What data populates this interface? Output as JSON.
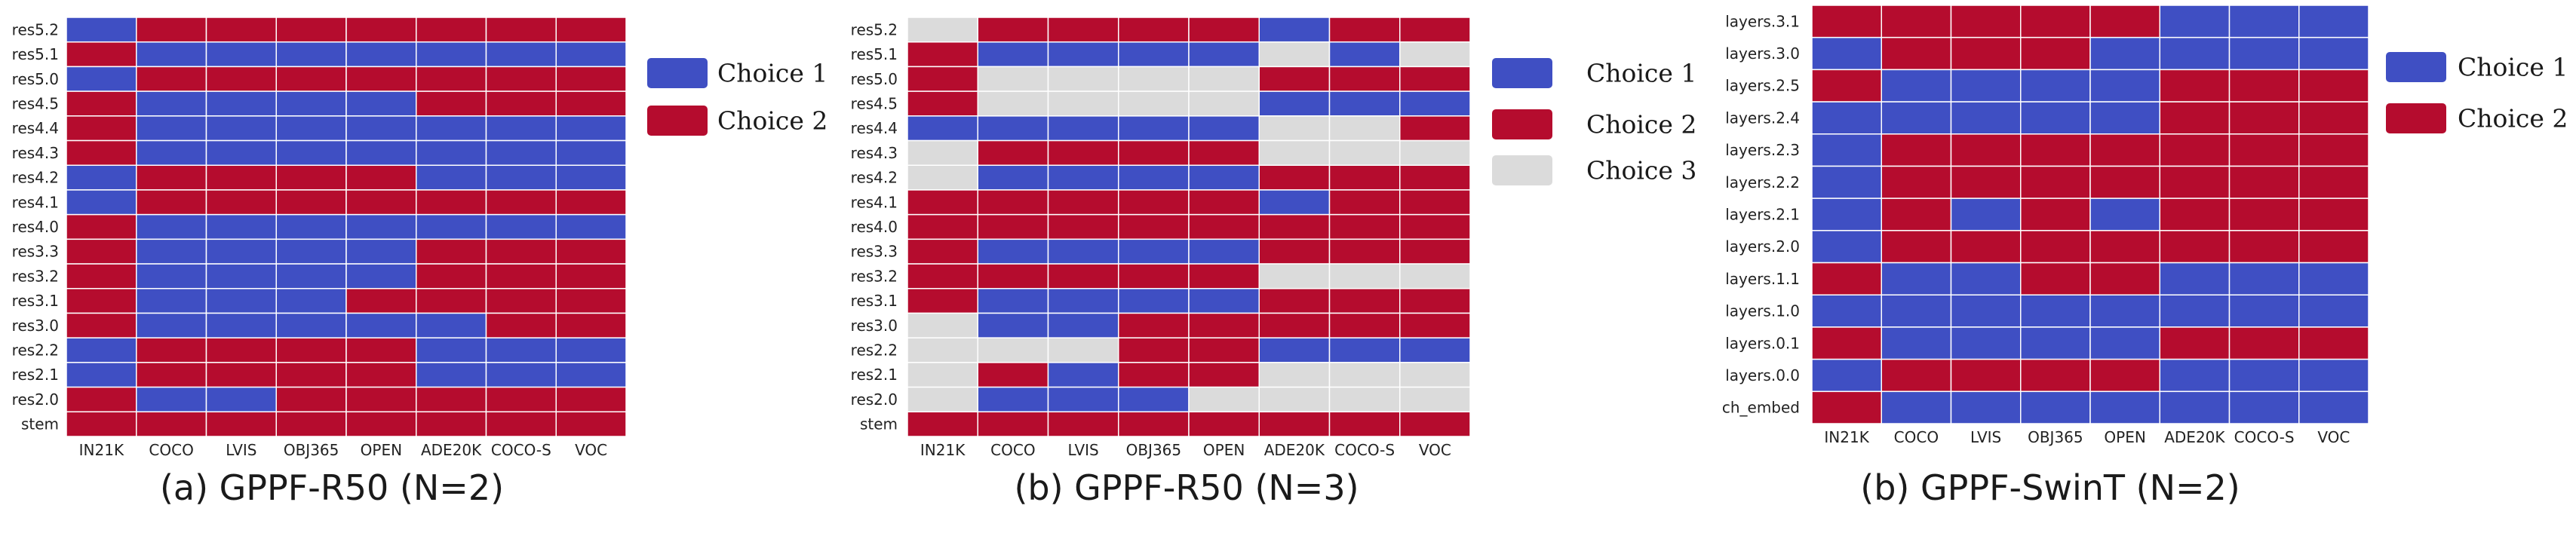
{
  "colors": {
    "choice1": "#3F4FC3",
    "choice2": "#B50C2E",
    "choice3": "#DBDBDB",
    "gridline": "#ffffff"
  },
  "chart_data": [
    {
      "type": "heatmap",
      "caption": "(a) GPPF-R50 (N=2)",
      "columns": [
        "IN21K",
        "COCO",
        "LVIS",
        "OBJ365",
        "OPEN",
        "ADE20K",
        "COCO-S",
        "VOC"
      ],
      "rows": [
        "res5.2",
        "res5.1",
        "res5.0",
        "res4.5",
        "res4.4",
        "res4.3",
        "res4.2",
        "res4.1",
        "res4.0",
        "res3.3",
        "res3.2",
        "res3.1",
        "res3.0",
        "res2.2",
        "res2.1",
        "res2.0",
        "stem"
      ],
      "legend": [
        {
          "value": 1,
          "label": "Choice 1"
        },
        {
          "value": 2,
          "label": "Choice 2"
        }
      ],
      "values": [
        [
          1,
          2,
          2,
          2,
          2,
          2,
          2,
          2
        ],
        [
          2,
          1,
          1,
          1,
          1,
          1,
          1,
          1
        ],
        [
          1,
          2,
          2,
          2,
          2,
          2,
          2,
          2
        ],
        [
          2,
          1,
          1,
          1,
          1,
          2,
          2,
          2
        ],
        [
          2,
          1,
          1,
          1,
          1,
          1,
          1,
          1
        ],
        [
          2,
          1,
          1,
          1,
          1,
          1,
          1,
          1
        ],
        [
          1,
          2,
          2,
          2,
          2,
          1,
          1,
          1
        ],
        [
          1,
          2,
          2,
          2,
          2,
          2,
          2,
          2
        ],
        [
          2,
          1,
          1,
          1,
          1,
          1,
          1,
          1
        ],
        [
          2,
          1,
          1,
          1,
          1,
          2,
          2,
          2
        ],
        [
          2,
          1,
          1,
          1,
          1,
          2,
          2,
          2
        ],
        [
          2,
          1,
          1,
          1,
          2,
          2,
          2,
          2
        ],
        [
          2,
          1,
          1,
          1,
          1,
          1,
          2,
          2
        ],
        [
          1,
          2,
          2,
          2,
          2,
          1,
          1,
          1
        ],
        [
          1,
          2,
          2,
          2,
          2,
          1,
          1,
          1
        ],
        [
          2,
          1,
          1,
          2,
          2,
          2,
          2,
          2
        ],
        [
          2,
          2,
          2,
          2,
          2,
          2,
          2,
          2
        ]
      ]
    },
    {
      "type": "heatmap",
      "caption": "(b) GPPF-R50 (N=3)",
      "columns": [
        "IN21K",
        "COCO",
        "LVIS",
        "OBJ365",
        "OPEN",
        "ADE20K",
        "COCO-S",
        "VOC"
      ],
      "rows": [
        "res5.2",
        "res5.1",
        "res5.0",
        "res4.5",
        "res4.4",
        "res4.3",
        "res4.2",
        "res4.1",
        "res4.0",
        "res3.3",
        "res3.2",
        "res3.1",
        "res3.0",
        "res2.2",
        "res2.1",
        "res2.0",
        "stem"
      ],
      "legend": [
        {
          "value": 1,
          "label": "Choice 1"
        },
        {
          "value": 2,
          "label": "Choice 2"
        },
        {
          "value": 3,
          "label": "Choice 3"
        }
      ],
      "values": [
        [
          3,
          2,
          2,
          2,
          2,
          1,
          2,
          2
        ],
        [
          2,
          1,
          1,
          1,
          1,
          3,
          1,
          3
        ],
        [
          2,
          3,
          3,
          3,
          3,
          2,
          2,
          2
        ],
        [
          2,
          3,
          3,
          3,
          3,
          1,
          1,
          1
        ],
        [
          1,
          1,
          1,
          1,
          1,
          3,
          3,
          2
        ],
        [
          3,
          2,
          2,
          2,
          2,
          3,
          3,
          3
        ],
        [
          3,
          1,
          1,
          1,
          1,
          2,
          2,
          2
        ],
        [
          2,
          2,
          2,
          2,
          2,
          1,
          2,
          2
        ],
        [
          2,
          2,
          2,
          2,
          2,
          2,
          2,
          2
        ],
        [
          2,
          1,
          1,
          1,
          1,
          2,
          2,
          2
        ],
        [
          2,
          2,
          2,
          2,
          2,
          3,
          3,
          3
        ],
        [
          2,
          1,
          1,
          1,
          1,
          2,
          2,
          2
        ],
        [
          3,
          1,
          1,
          2,
          2,
          2,
          2,
          2
        ],
        [
          3,
          3,
          3,
          2,
          2,
          1,
          1,
          1
        ],
        [
          3,
          2,
          1,
          2,
          2,
          3,
          3,
          3
        ],
        [
          3,
          1,
          1,
          1,
          3,
          3,
          3,
          3
        ],
        [
          2,
          2,
          2,
          2,
          2,
          2,
          2,
          2
        ]
      ]
    },
    {
      "type": "heatmap",
      "caption": "(b) GPPF-SwinT (N=2)",
      "columns": [
        "IN21K",
        "COCO",
        "LVIS",
        "OBJ365",
        "OPEN",
        "ADE20K",
        "COCO-S",
        "VOC"
      ],
      "rows": [
        "layers.3.1",
        "layers.3.0",
        "layers.2.5",
        "layers.2.4",
        "layers.2.3",
        "layers.2.2",
        "layers.2.1",
        "layers.2.0",
        "layers.1.1",
        "layers.1.0",
        "layers.0.1",
        "layers.0.0",
        "ch_embed"
      ],
      "legend": [
        {
          "value": 1,
          "label": "Choice 1"
        },
        {
          "value": 2,
          "label": "Choice 2"
        }
      ],
      "values": [
        [
          2,
          2,
          2,
          2,
          2,
          1,
          1,
          1
        ],
        [
          1,
          2,
          2,
          2,
          1,
          1,
          1,
          1
        ],
        [
          2,
          1,
          1,
          1,
          1,
          2,
          2,
          2
        ],
        [
          1,
          1,
          1,
          1,
          1,
          2,
          2,
          2
        ],
        [
          1,
          2,
          2,
          2,
          2,
          2,
          2,
          2
        ],
        [
          1,
          2,
          2,
          2,
          2,
          2,
          2,
          2
        ],
        [
          1,
          2,
          1,
          2,
          1,
          2,
          2,
          2
        ],
        [
          1,
          2,
          2,
          2,
          2,
          2,
          2,
          2
        ],
        [
          2,
          1,
          1,
          2,
          2,
          1,
          1,
          1
        ],
        [
          1,
          1,
          1,
          1,
          1,
          1,
          1,
          1
        ],
        [
          2,
          1,
          1,
          1,
          1,
          2,
          2,
          2
        ],
        [
          1,
          2,
          2,
          2,
          2,
          1,
          1,
          1
        ],
        [
          2,
          1,
          1,
          1,
          1,
          1,
          1,
          1
        ]
      ]
    }
  ]
}
